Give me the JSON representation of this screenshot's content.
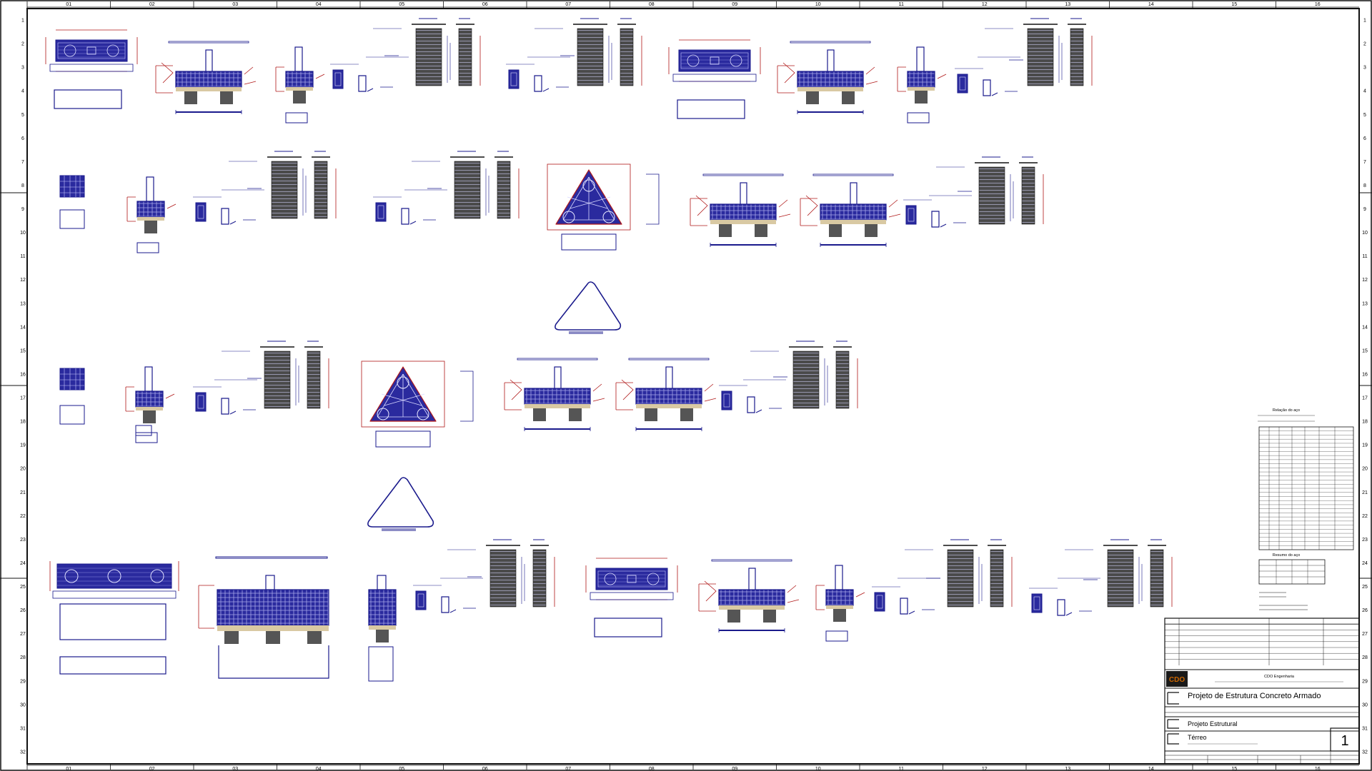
{
  "title_block": {
    "company": "CDO Engenharia",
    "project": "Projeto de Estrutura Concreto Armado",
    "discipline": "Projeto Estrutural",
    "floor": "Térreo",
    "sheet_number": "1"
  },
  "steel_summary": {
    "title": "Relação do aço",
    "summary_title": "Resumo do aço"
  },
  "ruler": {
    "columns": [
      "01",
      "02",
      "03",
      "04",
      "05",
      "06",
      "07",
      "08",
      "09",
      "10",
      "11",
      "12",
      "13",
      "14",
      "15",
      "16"
    ],
    "rows": [
      "1",
      "2",
      "3",
      "4",
      "5",
      "6",
      "7",
      "8",
      "9",
      "10",
      "11",
      "12",
      "13",
      "14",
      "15",
      "16",
      "17",
      "18",
      "19",
      "20",
      "21",
      "22",
      "23",
      "24",
      "25",
      "26",
      "27",
      "28",
      "29",
      "30",
      "31",
      "32"
    ]
  },
  "colors": {
    "rebar": "#1a1a9c",
    "dimension": "#b01818",
    "concrete": "#d9c9a3",
    "pile": "#666666",
    "logo": "#cc6600"
  }
}
